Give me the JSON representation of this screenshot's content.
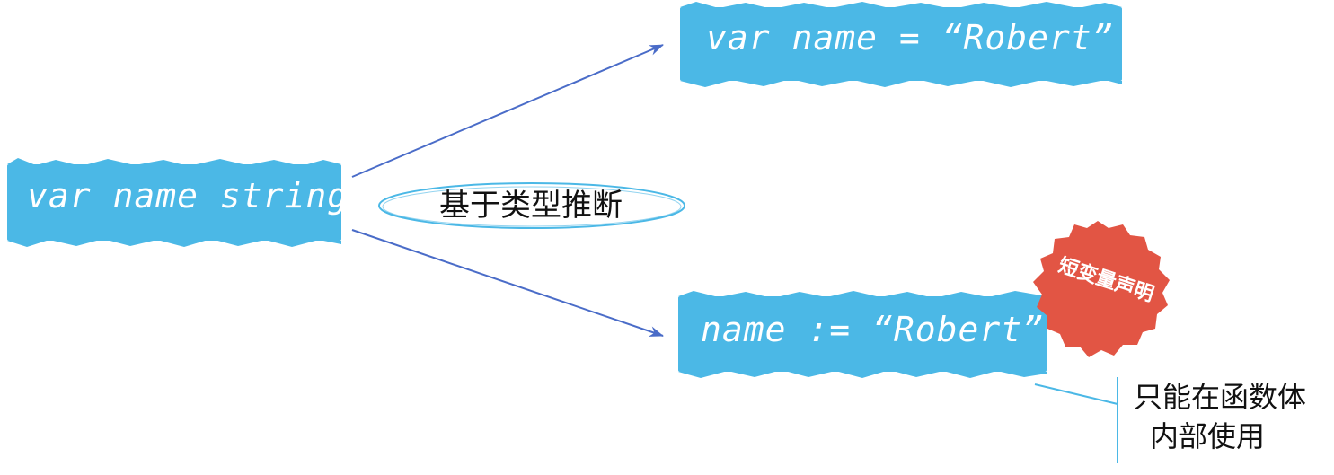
{
  "source": {
    "code": "var name string"
  },
  "targets": {
    "top": {
      "code": "var name = “Robert”"
    },
    "bottom": {
      "code": "name := “Robert”"
    }
  },
  "oval_label": "基于类型推断",
  "badge": {
    "text": "短变量声明",
    "color": "#e25544"
  },
  "note": {
    "line1": "只能在函数体",
    "line2": "内部使用"
  },
  "colors": {
    "box": "#4bb8e6",
    "arrow": "#4a6cc8",
    "oval": "#4bb8e6",
    "badge": "#e25544",
    "bracket": "#4bb8e6"
  }
}
